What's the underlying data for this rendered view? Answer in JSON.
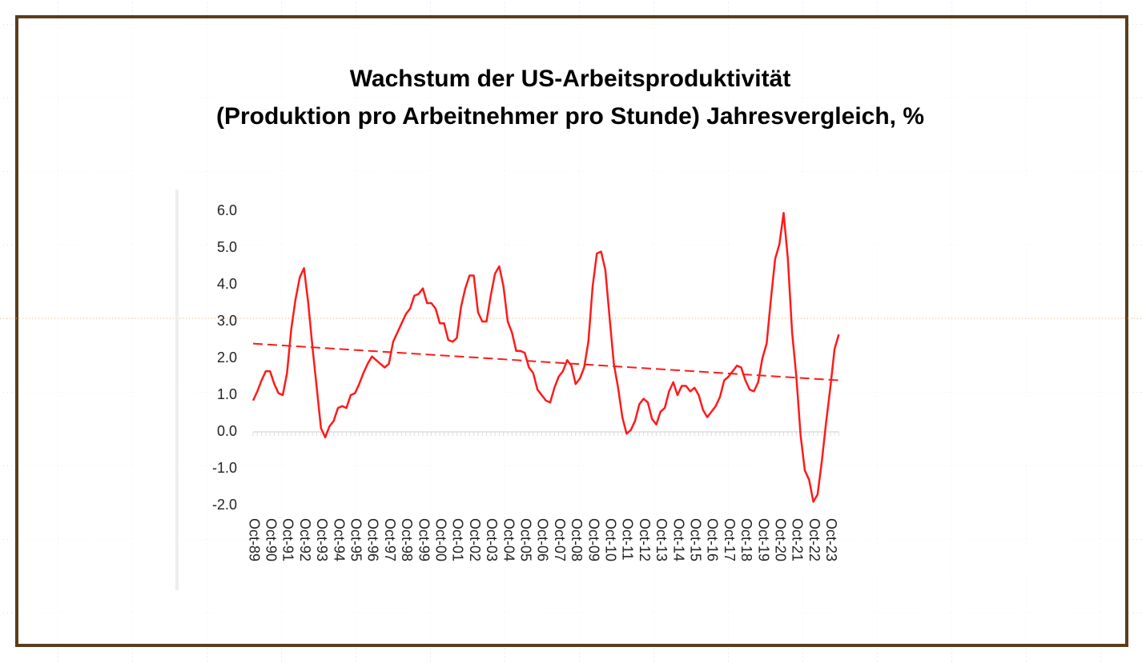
{
  "chart_data": {
    "type": "line",
    "title": [
      "Wachstum der US-Arbeitsproduktivität",
      "(Produktion pro Arbeitnehmer pro Stunde) Jahresvergleich, %"
    ],
    "categories": [
      "Oct-89",
      null,
      null,
      null,
      "Oct-90",
      null,
      null,
      null,
      "Oct-91",
      null,
      null,
      null,
      "Oct-92",
      null,
      null,
      null,
      "Oct-93",
      null,
      null,
      null,
      "Oct-94",
      null,
      null,
      null,
      "Oct-95",
      null,
      null,
      null,
      "Oct-96",
      null,
      null,
      null,
      "Oct-97",
      null,
      null,
      null,
      "Oct-98",
      null,
      null,
      null,
      "Oct-99",
      null,
      null,
      null,
      "Oct-00",
      null,
      null,
      null,
      "Oct-01",
      null,
      null,
      null,
      "Oct-02",
      null,
      null,
      null,
      "Oct-03",
      null,
      null,
      null,
      "Oct-04",
      null,
      null,
      null,
      "Oct-05",
      null,
      null,
      null,
      "Oct-06",
      null,
      null,
      null,
      "Oct-07",
      null,
      null,
      null,
      "Oct-08",
      null,
      null,
      null,
      "Oct-09",
      null,
      null,
      null,
      "Oct-10",
      null,
      null,
      null,
      "Oct-11",
      null,
      null,
      null,
      "Oct-12",
      null,
      null,
      null,
      "Oct-13",
      null,
      null,
      null,
      "Oct-14",
      null,
      null,
      null,
      "Oct-15",
      null,
      null,
      null,
      "Oct-16",
      null,
      null,
      null,
      "Oct-17",
      null,
      null,
      null,
      "Oct-18",
      null,
      null,
      null,
      "Oct-19",
      null,
      null,
      null,
      "Oct-20",
      null,
      null,
      null,
      "Oct-21",
      null,
      null,
      null,
      "Oct-22",
      null,
      null,
      null,
      "Oct-23",
      null,
      null
    ],
    "series": [
      {
        "color": "#ff1a1a",
        "values": [
          0.85,
          1.1,
          1.4,
          1.65,
          1.65,
          1.3,
          1.05,
          1.0,
          1.6,
          2.8,
          3.6,
          4.2,
          4.45,
          3.5,
          2.3,
          1.2,
          0.1,
          -0.15,
          0.15,
          0.3,
          0.65,
          0.7,
          0.65,
          1.0,
          1.05,
          1.3,
          1.6,
          1.85,
          2.05,
          1.95,
          1.85,
          1.75,
          1.85,
          2.45,
          2.7,
          2.95,
          3.2,
          3.35,
          3.7,
          3.75,
          3.9,
          3.5,
          3.5,
          3.35,
          2.95,
          2.95,
          2.5,
          2.45,
          2.55,
          3.4,
          3.9,
          4.25,
          4.25,
          3.25,
          3.0,
          3.0,
          3.7,
          4.3,
          4.5,
          3.95,
          3.0,
          2.7,
          2.2,
          2.2,
          2.15,
          1.75,
          1.6,
          1.15,
          1.0,
          0.85,
          0.8,
          1.2,
          1.5,
          1.65,
          1.95,
          1.8,
          1.3,
          1.45,
          1.75,
          2.45,
          3.95,
          4.85,
          4.9,
          4.4,
          3.1,
          1.85,
          1.2,
          0.4,
          -0.05,
          0.05,
          0.3,
          0.75,
          0.9,
          0.8,
          0.35,
          0.2,
          0.55,
          0.65,
          1.1,
          1.35,
          1.0,
          1.25,
          1.25,
          1.1,
          1.2,
          1.0,
          0.6,
          0.4,
          0.55,
          0.7,
          0.95,
          1.4,
          1.5,
          1.65,
          1.8,
          1.75,
          1.4,
          1.15,
          1.1,
          1.35,
          2.0,
          2.4,
          3.6,
          4.7,
          5.1,
          5.95,
          4.7,
          2.7,
          1.5,
          -0.1,
          -1.05,
          -1.3,
          -1.9,
          -1.7,
          -0.8,
          0.25,
          1.2,
          2.25,
          2.65
        ]
      }
    ],
    "trend": {
      "color": "#ff1a1a",
      "dash": true,
      "values": [
        2.4,
        1.4
      ]
    },
    "ylim": [
      -2,
      6
    ],
    "yticks": [
      {
        "value": -2,
        "label": "-2.0"
      },
      {
        "value": -1,
        "label": "-1.0"
      },
      {
        "value": 0,
        "label": "0.0"
      },
      {
        "value": 1,
        "label": "1.0"
      },
      {
        "value": 2,
        "label": "2.0"
      },
      {
        "value": 3,
        "label": "3.0"
      },
      {
        "value": 4,
        "label": "4.0"
      },
      {
        "value": 5,
        "label": "5.0"
      },
      {
        "value": 6,
        "label": "6.0"
      }
    ]
  }
}
